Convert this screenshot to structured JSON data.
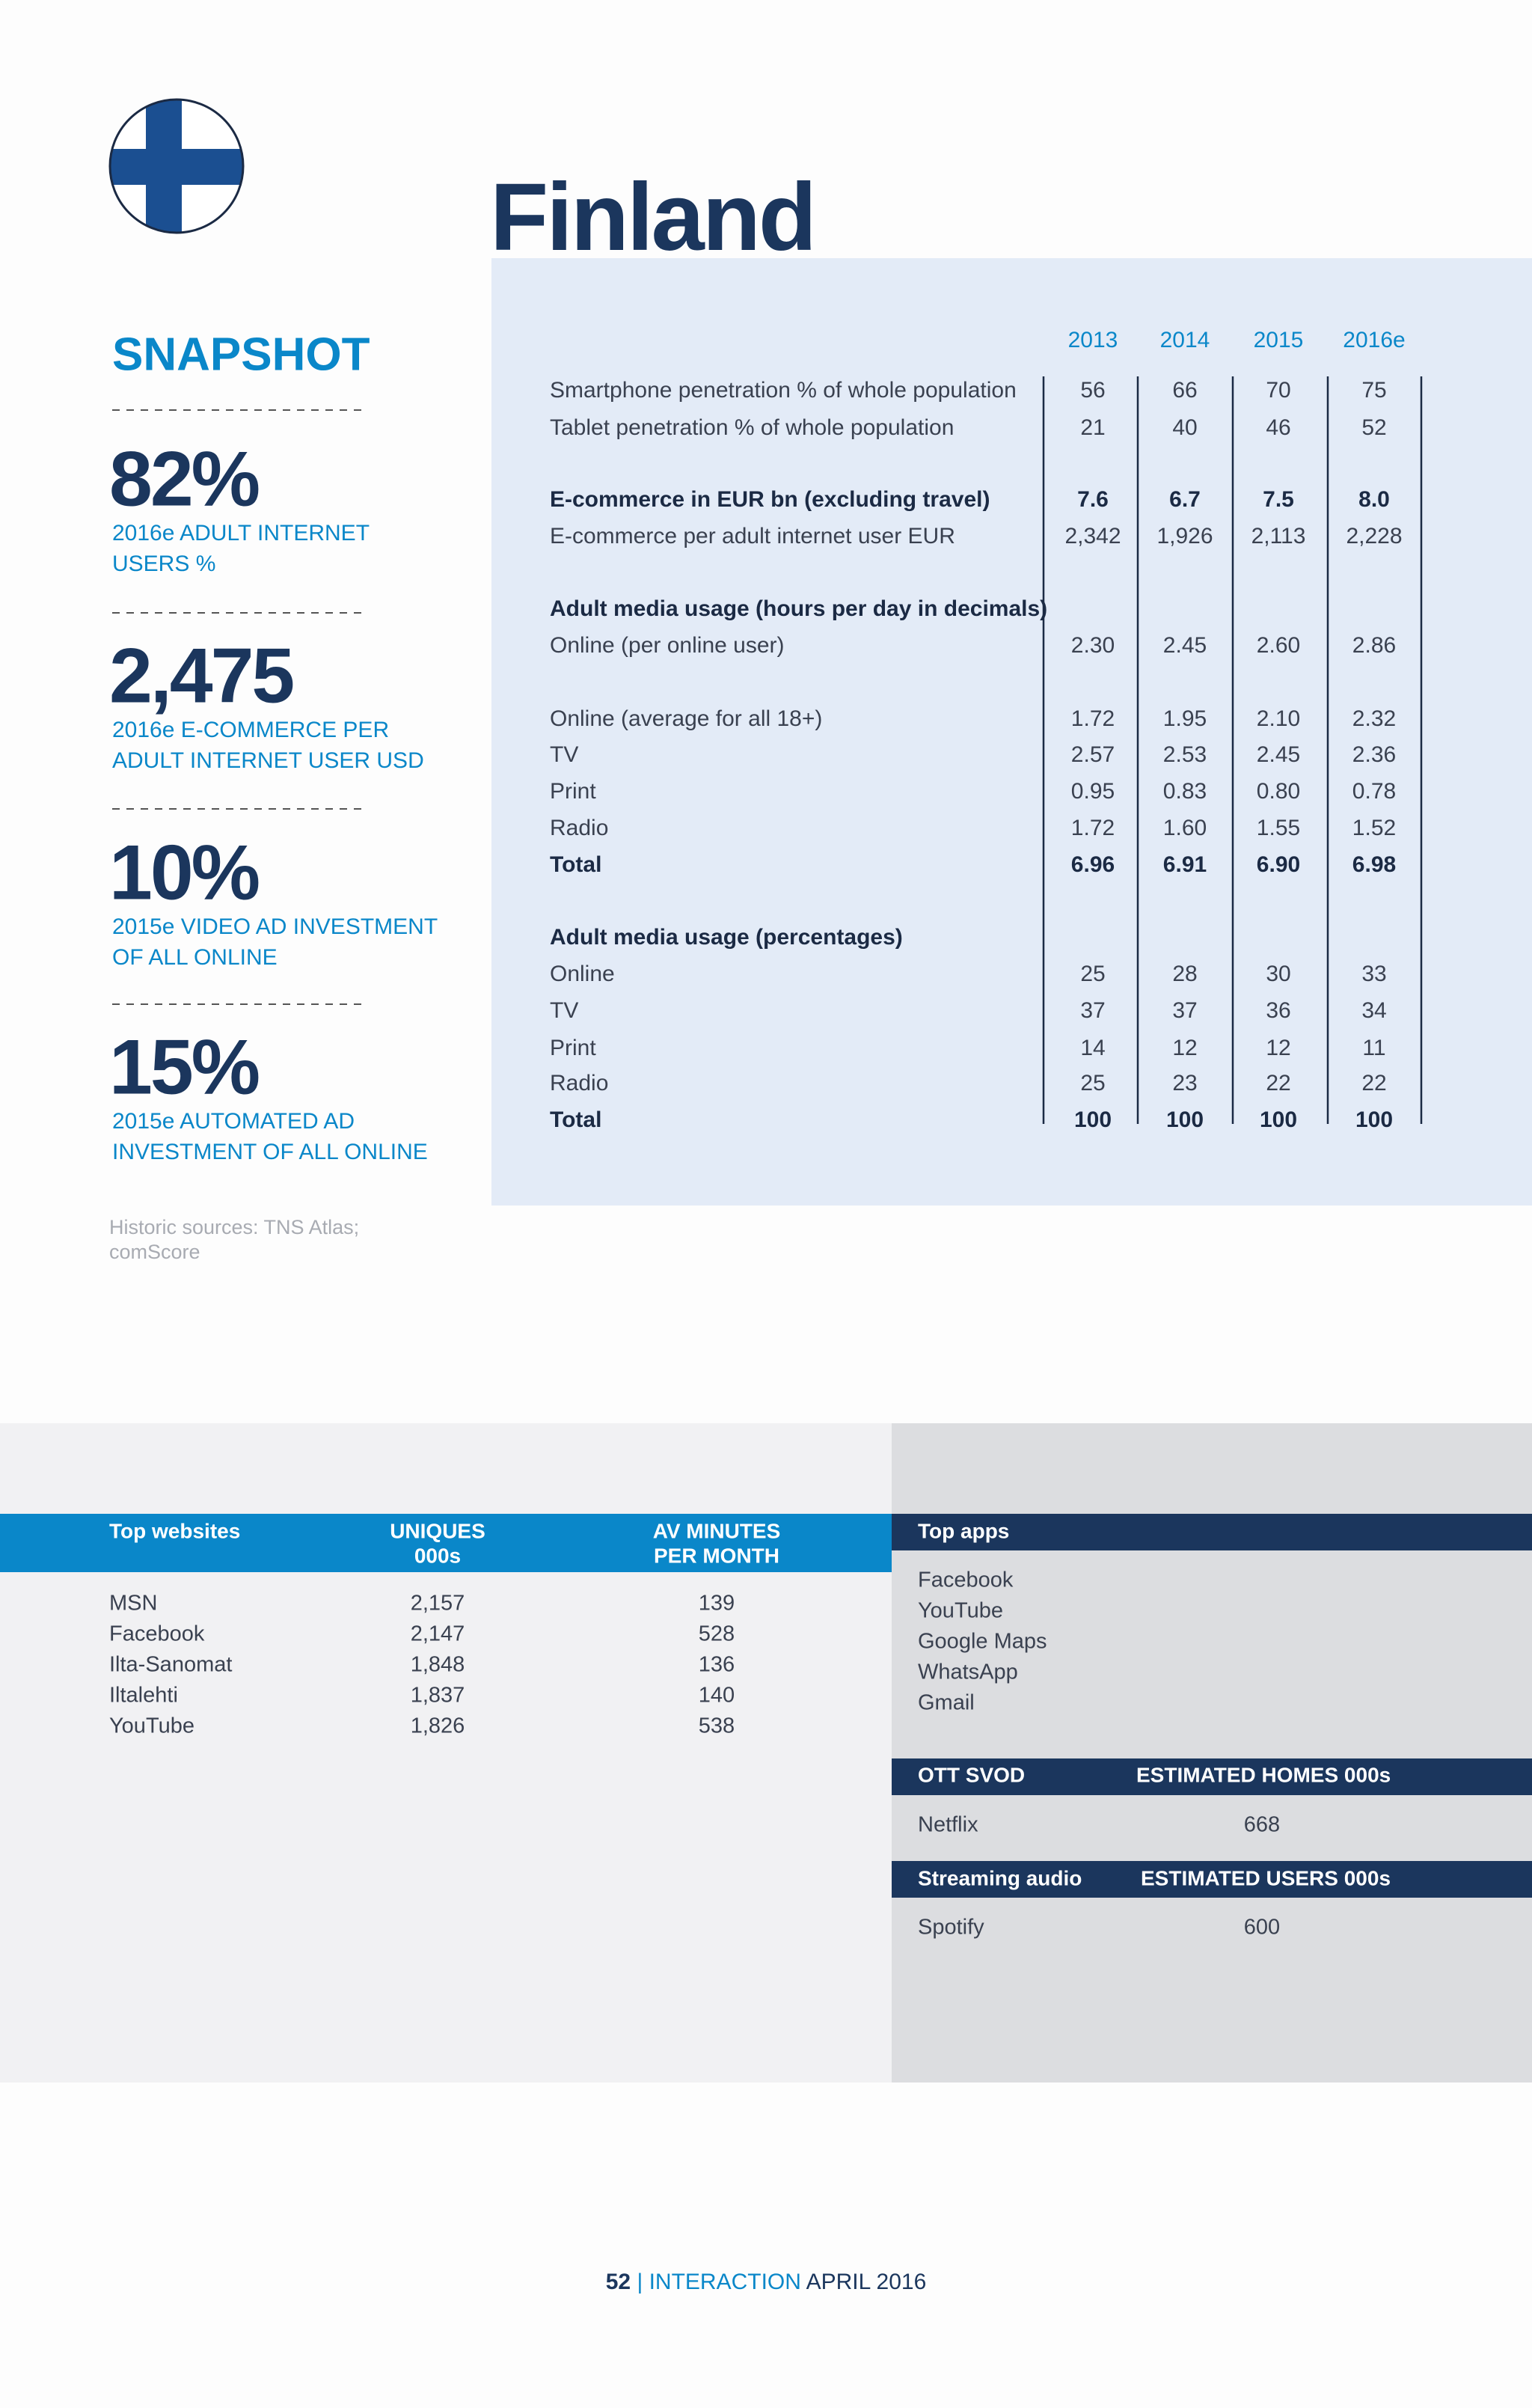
{
  "title": "Finland",
  "snapshot": {
    "heading": "SNAPSHOT",
    "items": [
      {
        "figure": "82%",
        "caption": [
          "2016e ADULT INTERNET",
          "USERS %"
        ]
      },
      {
        "figure": "2,475",
        "caption": [
          "2016e E-COMMERCE PER",
          "ADULT INTERNET USER USD"
        ]
      },
      {
        "figure": "10%",
        "caption": [
          "2015e VIDEO AD INVESTMENT",
          "OF ALL ONLINE"
        ]
      },
      {
        "figure": "15%",
        "caption": [
          "2015e AUTOMATED AD",
          "INVESTMENT OF ALL ONLINE"
        ]
      }
    ],
    "sources": [
      "Historic sources: TNS Atlas;",
      "comScore"
    ]
  },
  "table": {
    "years": [
      "2013",
      "2014",
      "2015",
      "2016e"
    ],
    "rows": [
      {
        "label": "Smartphone penetration % of whole population",
        "values": [
          "56",
          "66",
          "70",
          "75"
        ]
      },
      {
        "label": "Tablet penetration % of whole population",
        "values": [
          "21",
          "40",
          "46",
          "52"
        ]
      },
      {
        "label": "E-commerce in EUR bn (excluding travel)",
        "values": [
          "7.6",
          "6.7",
          "7.5",
          "8.0"
        ],
        "bold": true
      },
      {
        "label": "E-commerce per adult internet user EUR",
        "values": [
          "2,342",
          "1,926",
          "2,113",
          "2,228"
        ]
      },
      {
        "label": "Adult media usage (hours per day in decimals)",
        "bold": true
      },
      {
        "label": "Online (per online user)",
        "values": [
          "2.30",
          "2.45",
          "2.60",
          "2.86"
        ]
      },
      {
        "label": "Online (average for all 18+)",
        "values": [
          "1.72",
          "1.95",
          "2.10",
          "2.32"
        ]
      },
      {
        "label": "TV",
        "values": [
          "2.57",
          "2.53",
          "2.45",
          "2.36"
        ]
      },
      {
        "label": "Print",
        "values": [
          "0.95",
          "0.83",
          "0.80",
          "0.78"
        ]
      },
      {
        "label": "Radio",
        "values": [
          "1.72",
          "1.60",
          "1.55",
          "1.52"
        ]
      },
      {
        "label": "Total",
        "values": [
          "6.96",
          "6.91",
          "6.90",
          "6.98"
        ],
        "bold": true
      },
      {
        "label": "Adult media usage (percentages)",
        "bold": true
      },
      {
        "label": "Online",
        "values": [
          "25",
          "28",
          "30",
          "33"
        ]
      },
      {
        "label": "TV",
        "values": [
          "37",
          "37",
          "36",
          "34"
        ]
      },
      {
        "label": "Print",
        "values": [
          "14",
          "12",
          "12",
          "11"
        ]
      },
      {
        "label": "Radio",
        "values": [
          "25",
          "23",
          "22",
          "22"
        ]
      },
      {
        "label": "Total",
        "values": [
          "100",
          "100",
          "100",
          "100"
        ],
        "bold": true
      }
    ]
  },
  "websites": {
    "headers": [
      "Top websites",
      [
        "UNIQUES",
        "000s"
      ],
      [
        "AV MINUTES",
        "PER MONTH"
      ]
    ],
    "rows": [
      [
        "MSN",
        "2,157",
        "139"
      ],
      [
        "Facebook",
        "2,147",
        "528"
      ],
      [
        "Ilta-Sanomat",
        "1,848",
        "136"
      ],
      [
        "Iltalehti",
        "1,837",
        "140"
      ],
      [
        "YouTube",
        "1,826",
        "538"
      ]
    ]
  },
  "apps": {
    "header": "Top apps",
    "items": [
      "Facebook",
      "YouTube",
      "Google Maps",
      "WhatsApp",
      "Gmail"
    ]
  },
  "ott": {
    "headers": [
      "OTT SVOD",
      "ESTIMATED HOMES 000s"
    ],
    "rows": [
      [
        "Netflix",
        "668"
      ]
    ]
  },
  "audio": {
    "headers": [
      "Streaming audio",
      "ESTIMATED USERS 000s"
    ],
    "rows": [
      [
        "Spotify",
        "600"
      ]
    ]
  },
  "footer": {
    "page": "52",
    "separator": "|",
    "publication": "INTERACTION",
    "date": "APRIL 2016"
  }
}
